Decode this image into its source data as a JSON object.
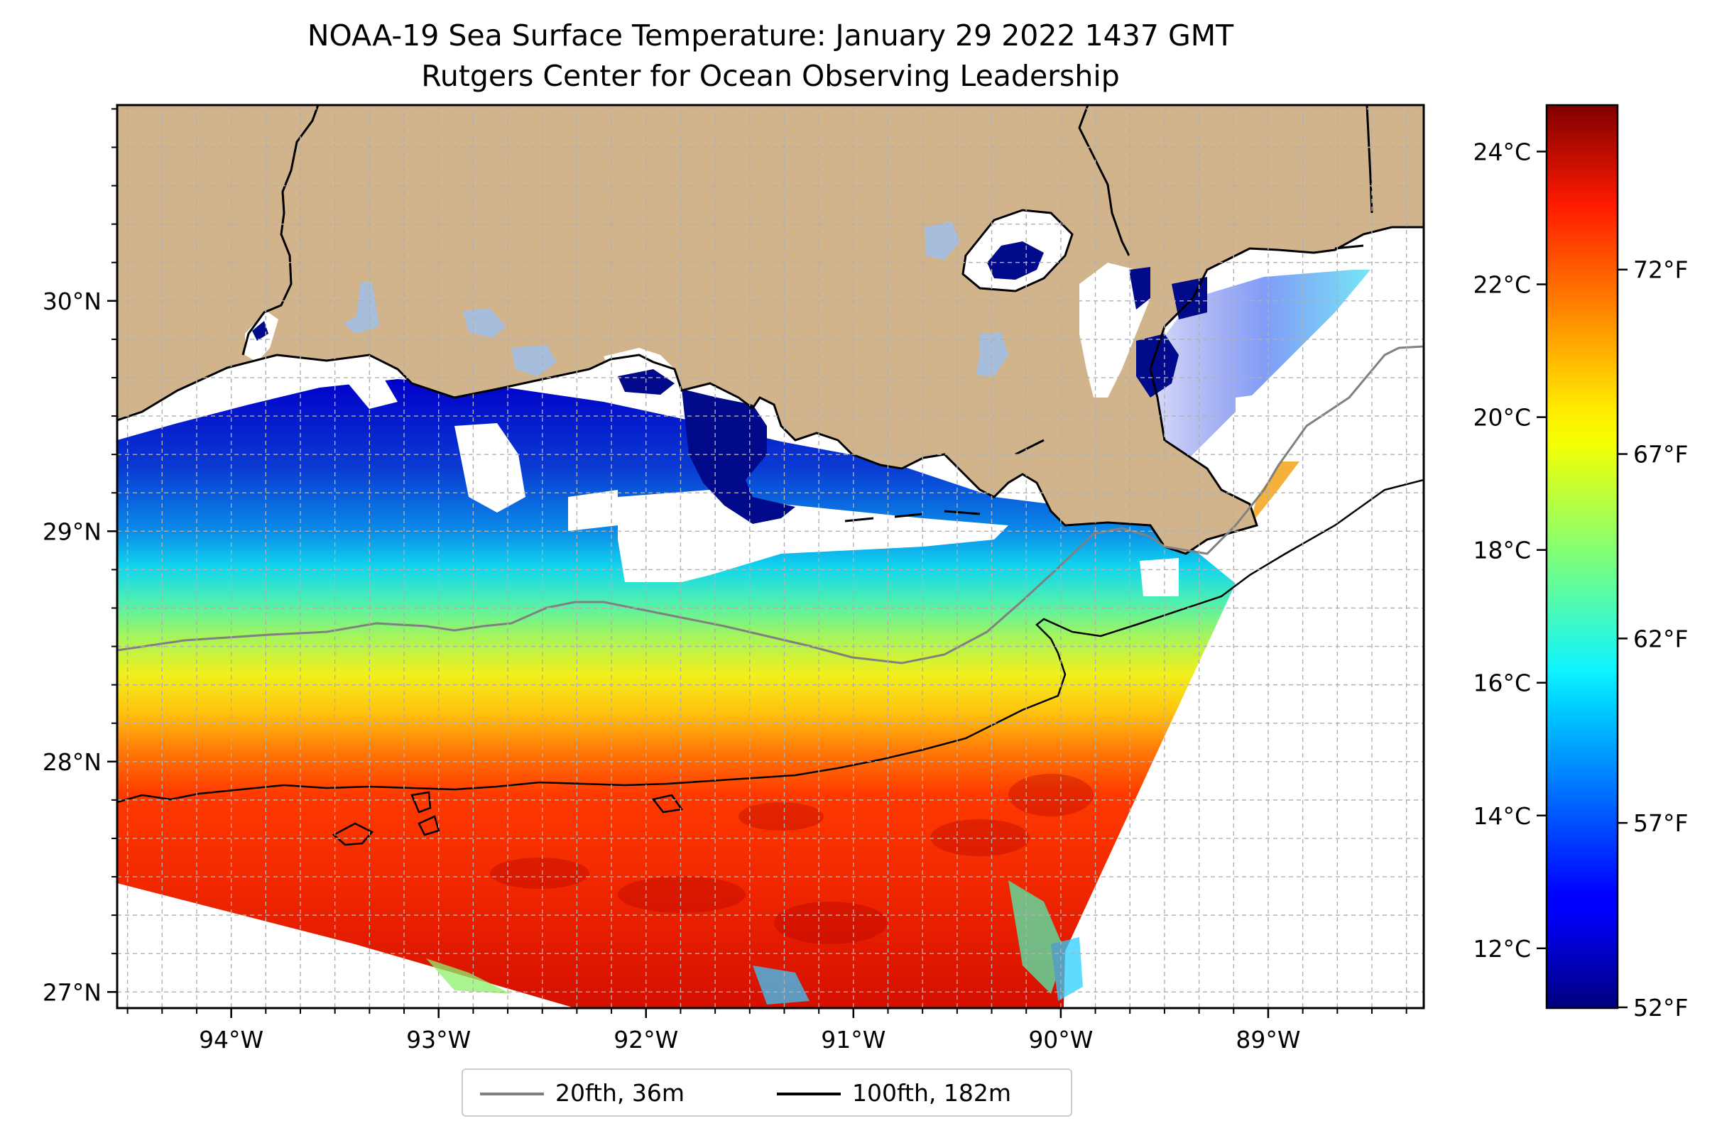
{
  "title": {
    "line1": "NOAA-19 Sea Surface Temperature: January 29 2022 1437 GMT",
    "line2": "Rutgers Center for Ocean Observing Leadership"
  },
  "map": {
    "lon_range": [
      -94.55,
      -88.25
    ],
    "lat_range": [
      26.93,
      30.85
    ],
    "x_ticks": [
      {
        "value": -94,
        "label": "94°W"
      },
      {
        "value": -93,
        "label": "93°W"
      },
      {
        "value": -92,
        "label": "92°W"
      },
      {
        "value": -91,
        "label": "91°W"
      },
      {
        "value": -90,
        "label": "90°W"
      },
      {
        "value": -89,
        "label": "89°W"
      }
    ],
    "y_ticks": [
      {
        "value": 27,
        "label": "27°N"
      },
      {
        "value": 28,
        "label": "28°N"
      },
      {
        "value": 29,
        "label": "29°N"
      },
      {
        "value": 30,
        "label": "30°N"
      }
    ],
    "gridlines": true,
    "land_color": "#d2b48c",
    "no_data_color": "#ffffff",
    "lake_color": "#a6bddb"
  },
  "colorbar": {
    "colormap": "jet",
    "celsius_range": [
      11.1,
      24.7
    ],
    "celsius_ticks": [
      {
        "value": 12,
        "label": "12°C"
      },
      {
        "value": 14,
        "label": "14°C"
      },
      {
        "value": 16,
        "label": "16°C"
      },
      {
        "value": 18,
        "label": "18°C"
      },
      {
        "value": 20,
        "label": "20°C"
      },
      {
        "value": 22,
        "label": "22°C"
      },
      {
        "value": 24,
        "label": "24°C"
      }
    ],
    "fahrenheit_ticks": [
      {
        "value": 52,
        "label": "52°F"
      },
      {
        "value": 57,
        "label": "57°F"
      },
      {
        "value": 62,
        "label": "62°F"
      },
      {
        "value": 67,
        "label": "67°F"
      },
      {
        "value": 72,
        "label": "72°F"
      }
    ]
  },
  "legend": {
    "items": [
      {
        "label": "20fth, 36m",
        "color": "#808080"
      },
      {
        "label": "100fth, 182m",
        "color": "#000000"
      }
    ],
    "placement": "bottom-center"
  },
  "colors": {
    "isobath_20": "#808080",
    "isobath_100": "#000000"
  }
}
